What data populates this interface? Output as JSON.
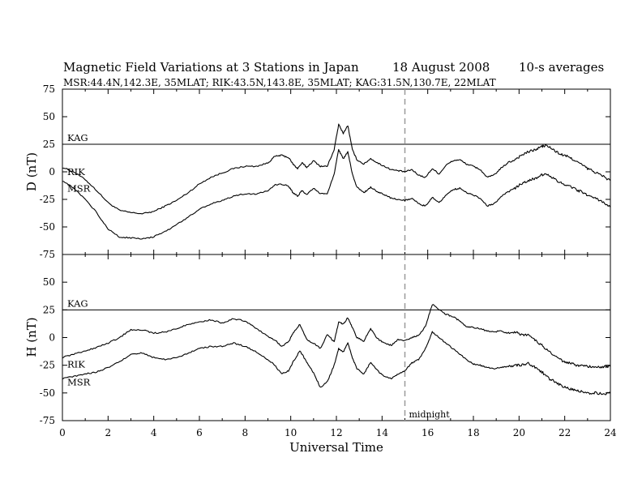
{
  "header": {
    "title": "Magnetic Field Variations at 3 Stations in Japan",
    "date": "18  August  2008",
    "averaging": "10-s averages",
    "stations": "MSR:44.4N,142.3E, 35MLAT;  RIK:43.5N,143.8E, 35MLAT;  KAG:31.5N,130.7E, 22MLAT"
  },
  "colors": {
    "trace": "#000000",
    "midnight_line": "#9a9a9a",
    "background": "#ffffff"
  },
  "chart_data": [
    {
      "type": "line",
      "panel": "D",
      "ylabel": "D (nT)",
      "xlim": [
        0,
        24
      ],
      "ylim": [
        -75,
        75
      ],
      "yticks": [
        75,
        50,
        25,
        0,
        -25,
        -50,
        -75
      ],
      "grid": false,
      "reference_line": {
        "label": "KAG",
        "y": 25
      },
      "series": [
        {
          "name": "RIK",
          "x": [
            0,
            0.5,
            1,
            1.5,
            2,
            2.5,
            3,
            3.5,
            4,
            4.5,
            5,
            5.5,
            6,
            6.5,
            7,
            7.5,
            8,
            8.5,
            9,
            9.3,
            9.6,
            9.9,
            10.1,
            10.3,
            10.5,
            10.7,
            11,
            11.3,
            11.6,
            11.9,
            12.1,
            12.3,
            12.5,
            12.7,
            12.9,
            13.2,
            13.5,
            13.8,
            14.1,
            14.4,
            14.7,
            15,
            15.3,
            15.6,
            15.9,
            16.2,
            16.5,
            16.8,
            17.1,
            17.4,
            17.7,
            18,
            18.3,
            18.6,
            18.9,
            19.2,
            19.5,
            19.8,
            20.1,
            20.4,
            20.7,
            21,
            21.2,
            21.5,
            21.8,
            22.1,
            22.4,
            22.7,
            23,
            23.3,
            23.6,
            24
          ],
          "values": [
            4,
            0,
            -7,
            -17,
            -28,
            -35,
            -37,
            -38,
            -36,
            -31,
            -26,
            -19,
            -11,
            -5,
            -1,
            3,
            5,
            5,
            8,
            14,
            15,
            13,
            7,
            3,
            8,
            4,
            10,
            5,
            5,
            20,
            43,
            35,
            42,
            20,
            11,
            7,
            12,
            8,
            5,
            2,
            1,
            0,
            2,
            -3,
            -5,
            3,
            -2,
            6,
            10,
            11,
            7,
            5,
            2,
            -5,
            -3,
            3,
            8,
            11,
            15,
            18,
            20,
            23,
            24,
            20,
            16,
            14,
            11,
            7,
            3,
            0,
            -3,
            -8
          ]
        },
        {
          "name": "MSR",
          "x": [
            0,
            0.5,
            1,
            1.5,
            2,
            2.5,
            3,
            3.5,
            4,
            4.5,
            5,
            5.5,
            6,
            6.5,
            7,
            7.5,
            8,
            8.5,
            9,
            9.3,
            9.6,
            9.9,
            10.1,
            10.3,
            10.5,
            10.7,
            11,
            11.3,
            11.6,
            11.9,
            12.1,
            12.3,
            12.5,
            12.7,
            12.9,
            13.2,
            13.5,
            13.8,
            14.1,
            14.4,
            14.7,
            15,
            15.3,
            15.6,
            15.9,
            16.2,
            16.5,
            16.8,
            17.1,
            17.4,
            17.7,
            18,
            18.3,
            18.6,
            18.9,
            19.2,
            19.5,
            19.8,
            20.1,
            20.4,
            20.7,
            21,
            21.2,
            21.5,
            21.8,
            22.1,
            22.4,
            22.7,
            23,
            23.3,
            23.6,
            24
          ],
          "values": [
            -8,
            -15,
            -25,
            -37,
            -52,
            -59,
            -60,
            -61,
            -59,
            -54,
            -48,
            -41,
            -34,
            -29,
            -26,
            -22,
            -20,
            -20,
            -17,
            -12,
            -11,
            -13,
            -19,
            -22,
            -17,
            -21,
            -15,
            -20,
            -20,
            -2,
            20,
            12,
            18,
            -2,
            -14,
            -19,
            -14,
            -18,
            -21,
            -24,
            -25,
            -26,
            -24,
            -29,
            -31,
            -23,
            -28,
            -21,
            -16,
            -15,
            -19,
            -21,
            -24,
            -31,
            -29,
            -23,
            -18,
            -15,
            -11,
            -8,
            -6,
            -3,
            -2,
            -6,
            -10,
            -12,
            -15,
            -18,
            -21,
            -24,
            -27,
            -32
          ]
        }
      ]
    },
    {
      "type": "line",
      "panel": "H",
      "ylabel": "H (nT)",
      "xlabel": "Universal Time",
      "xlim": [
        0,
        24
      ],
      "ylim": [
        -75,
        75
      ],
      "xticks": [
        0,
        2,
        4,
        6,
        8,
        10,
        12,
        14,
        16,
        18,
        20,
        22,
        24
      ],
      "yticks": [
        50,
        25,
        0,
        -25,
        -50,
        -75
      ],
      "grid": false,
      "reference_line": {
        "label": "KAG",
        "y": 25
      },
      "annotation": {
        "label": "midnight",
        "x": 15
      },
      "series": [
        {
          "name": "RIK",
          "x": [
            0,
            0.5,
            1,
            1.5,
            2,
            2.5,
            3,
            3.5,
            4,
            4.5,
            5,
            5.5,
            6,
            6.5,
            7,
            7.5,
            8,
            8.5,
            9,
            9.3,
            9.6,
            9.9,
            10.1,
            10.4,
            10.7,
            11,
            11.3,
            11.6,
            11.9,
            12.1,
            12.3,
            12.5,
            12.7,
            12.9,
            13.2,
            13.5,
            13.8,
            14.1,
            14.4,
            14.7,
            15,
            15.3,
            15.6,
            15.9,
            16.2,
            16.5,
            16.8,
            17.1,
            17.4,
            17.7,
            18,
            18.3,
            18.6,
            18.9,
            19.2,
            19.5,
            19.8,
            20.1,
            20.4,
            20.7,
            21,
            21.3,
            21.6,
            21.9,
            22.2,
            22.5,
            22.8,
            23.1,
            23.4,
            23.7,
            24
          ],
          "values": [
            -18,
            -15,
            -12,
            -9,
            -5,
            0,
            7,
            7,
            4,
            5,
            8,
            12,
            14,
            16,
            13,
            17,
            15,
            8,
            1,
            -2,
            -8,
            -4,
            4,
            12,
            -2,
            -5,
            -10,
            3,
            -4,
            14,
            12,
            18,
            9,
            0,
            -3,
            8,
            -1,
            -5,
            -7,
            -2,
            -3,
            0,
            2,
            10,
            30,
            25,
            21,
            19,
            15,
            10,
            9,
            8,
            6,
            5,
            6,
            4,
            5,
            3,
            2,
            -2,
            -7,
            -13,
            -17,
            -21,
            -23,
            -25,
            -26,
            -26,
            -27,
            -26,
            -26
          ]
        },
        {
          "name": "MSR",
          "x": [
            0,
            0.5,
            1,
            1.5,
            2,
            2.5,
            3,
            3.5,
            4,
            4.5,
            5,
            5.5,
            6,
            6.5,
            7,
            7.5,
            8,
            8.5,
            9,
            9.3,
            9.6,
            9.9,
            10.1,
            10.4,
            10.7,
            11,
            11.3,
            11.6,
            11.9,
            12.1,
            12.3,
            12.5,
            12.7,
            12.9,
            13.2,
            13.5,
            13.8,
            14.1,
            14.4,
            14.7,
            15,
            15.3,
            15.6,
            15.9,
            16.2,
            16.5,
            16.8,
            17.1,
            17.4,
            17.7,
            18,
            18.3,
            18.6,
            18.9,
            19.2,
            19.5,
            19.8,
            20.1,
            20.4,
            20.7,
            21,
            21.3,
            21.6,
            21.9,
            22.2,
            22.5,
            22.8,
            23.1,
            23.4,
            23.7,
            24
          ],
          "values": [
            -37,
            -35,
            -33,
            -31,
            -27,
            -22,
            -15,
            -14,
            -18,
            -20,
            -18,
            -14,
            -10,
            -8,
            -8,
            -5,
            -8,
            -13,
            -20,
            -25,
            -33,
            -30,
            -22,
            -12,
            -22,
            -32,
            -45,
            -40,
            -25,
            -10,
            -13,
            -5,
            -18,
            -28,
            -33,
            -22,
            -30,
            -35,
            -37,
            -33,
            -30,
            -23,
            -20,
            -10,
            5,
            0,
            -5,
            -10,
            -15,
            -20,
            -24,
            -25,
            -27,
            -28,
            -27,
            -26,
            -25,
            -25,
            -23,
            -27,
            -31,
            -37,
            -40,
            -44,
            -46,
            -48,
            -49,
            -50,
            -50,
            -51,
            -50
          ]
        }
      ]
    }
  ]
}
